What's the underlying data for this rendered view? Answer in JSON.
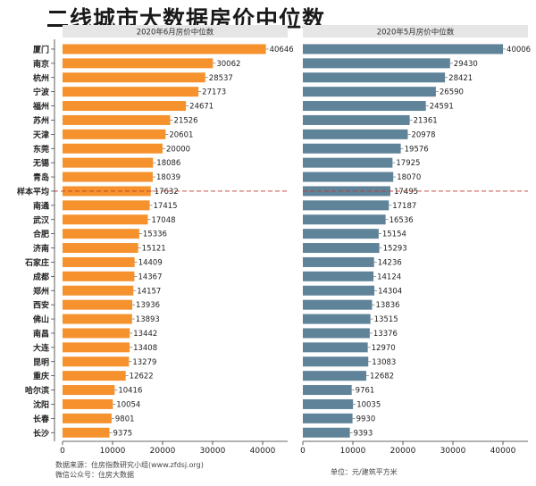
{
  "title": "二线城市大数据房价中位数",
  "footer": {
    "source": "数据来源：住房指数研究小组(www.zfdsj.org)",
    "wechat": "微信公众号：住房大数据",
    "unit": "单位：元/建筑平方米"
  },
  "chart_data": [
    {
      "type": "bar",
      "orientation": "horizontal",
      "title": "2020年6月房价中位数",
      "color": "#f5922e",
      "xlim": [
        0,
        45000
      ],
      "xticks": [
        0,
        10000,
        20000,
        30000,
        40000
      ],
      "categories": [
        "厦门",
        "南京",
        "杭州",
        "宁波",
        "福州",
        "苏州",
        "天津",
        "东莞",
        "无锡",
        "青岛",
        "样本平均",
        "南通",
        "武汉",
        "合肥",
        "济南",
        "石家庄",
        "成都",
        "郑州",
        "西安",
        "佛山",
        "南昌",
        "大连",
        "昆明",
        "重庆",
        "哈尔滨",
        "沈阳",
        "长春",
        "长沙"
      ],
      "values": [
        40646,
        30062,
        28537,
        27173,
        24671,
        21526,
        20601,
        20000,
        18086,
        18039,
        17632,
        17415,
        17048,
        15336,
        15121,
        14409,
        14367,
        14157,
        13936,
        13893,
        13442,
        13408,
        13279,
        12622,
        10416,
        10054,
        9801,
        9375
      ],
      "reference": {
        "category": "样本平均",
        "value": 17632
      }
    },
    {
      "type": "bar",
      "orientation": "horizontal",
      "title": "2020年5月房价中位数",
      "color": "#5f8399",
      "xlim": [
        0,
        45000
      ],
      "xticks": [
        0,
        10000,
        20000,
        30000,
        40000
      ],
      "categories": [
        "厦门",
        "南京",
        "杭州",
        "宁波",
        "福州",
        "苏州",
        "天津",
        "东莞",
        "无锡",
        "青岛",
        "样本平均",
        "南通",
        "武汉",
        "合肥",
        "济南",
        "石家庄",
        "成都",
        "郑州",
        "西安",
        "佛山",
        "南昌",
        "大连",
        "昆明",
        "重庆",
        "哈尔滨",
        "沈阳",
        "长春",
        "长沙"
      ],
      "values": [
        40006,
        29430,
        28421,
        26590,
        24591,
        21361,
        20978,
        19576,
        17925,
        18070,
        17495,
        17187,
        16536,
        15154,
        15293,
        14236,
        14124,
        14304,
        13836,
        13515,
        13376,
        12970,
        13083,
        12682,
        9761,
        10035,
        9930,
        9393
      ],
      "reference": {
        "category": "样本平均",
        "value": 17495
      }
    }
  ]
}
